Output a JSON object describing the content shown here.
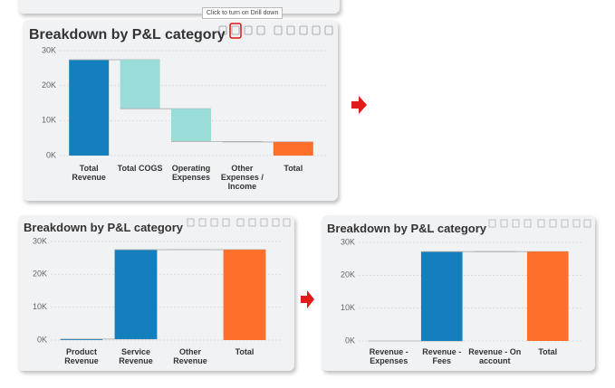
{
  "tooltip": "Click to turn on Drill down",
  "chart_data": [
    {
      "type": "waterfall",
      "title": "Breakdown by P&L category",
      "categories": [
        "Total Revenue",
        "Total COGS",
        "Operating Expenses",
        "Other Expenses / Income",
        "Total"
      ],
      "values": [
        27400,
        -14000,
        -9400,
        -100,
        3900
      ],
      "colors": {
        "increase": "#1380bd",
        "decrease": "#9adcd7",
        "total": "#fd6f2a"
      },
      "ylim": [
        0,
        30000
      ],
      "yticks": [
        {
          "value": 0,
          "label": "0K"
        },
        {
          "value": 10000,
          "label": "10K"
        },
        {
          "value": 20000,
          "label": "20K"
        },
        {
          "value": 30000,
          "label": "30K"
        }
      ],
      "grid": true
    },
    {
      "type": "waterfall",
      "title": "Breakdown by P&L category",
      "categories": [
        "Product Revenue",
        "Service Revenue",
        "Other Revenue",
        "Total"
      ],
      "values": [
        300,
        27200,
        0,
        27500
      ],
      "colors": {
        "increase": "#1380bd",
        "decrease": "#9adcd7",
        "total": "#fd6f2a"
      },
      "ylim": [
        0,
        30000
      ],
      "yticks": [
        {
          "value": 0,
          "label": "0K"
        },
        {
          "value": 10000,
          "label": "10K"
        },
        {
          "value": 20000,
          "label": "20K"
        },
        {
          "value": 30000,
          "label": "30K"
        }
      ],
      "grid": true
    },
    {
      "type": "waterfall",
      "title": "Breakdown by P&L category",
      "categories": [
        "Revenue - Expenses",
        "Revenue - Fees",
        "Revenue - On account",
        "Total"
      ],
      "values": [
        0,
        27200,
        0,
        27200
      ],
      "colors": {
        "increase": "#1380bd",
        "decrease": "#9adcd7",
        "total": "#fd6f2a"
      },
      "ylim": [
        0,
        30000
      ],
      "yticks": [
        {
          "value": 0,
          "label": "0K"
        },
        {
          "value": 10000,
          "label": "10K"
        },
        {
          "value": 20000,
          "label": "20K"
        },
        {
          "value": 30000,
          "label": "30K"
        }
      ],
      "grid": true
    }
  ]
}
